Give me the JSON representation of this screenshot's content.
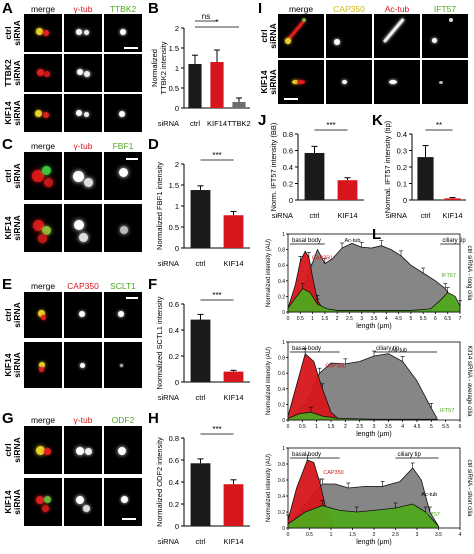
{
  "colors": {
    "red": "#d6161c",
    "green": "#4fa81e",
    "yellow": "#d4b800",
    "gray": "#6e6e6e",
    "black": "#1a1a1a"
  },
  "panels": {
    "A": {
      "label": "A",
      "headers": [
        "merge",
        "γ-tub",
        "TTBK2"
      ],
      "rows": [
        [
          "ctrl",
          "siRNA"
        ],
        [
          "TTBK2",
          "siRNA"
        ],
        [
          "KIF14",
          "siRNA"
        ]
      ]
    },
    "C": {
      "label": "C",
      "headers": [
        "merge",
        "γ-tub",
        "FBF1"
      ],
      "rows": [
        [
          "ctrl",
          "siRNA"
        ],
        [
          "KIF14",
          "siRNA"
        ]
      ]
    },
    "E": {
      "label": "E",
      "headers": [
        "merge",
        "CAP350",
        "SCLT1"
      ],
      "rows": [
        [
          "ctrl",
          "siRNA"
        ],
        [
          "KIF14",
          "siRNA"
        ]
      ]
    },
    "G": {
      "label": "G",
      "headers": [
        "merge",
        "γ-tub",
        "ODF2"
      ],
      "rows": [
        [
          "ctrl",
          "siRNA"
        ],
        [
          "KIF14",
          "siRNA"
        ]
      ]
    },
    "I": {
      "label": "I",
      "headers": [
        "merge",
        "CAP350",
        "Ac-tub",
        "IFT57"
      ],
      "rows": [
        [
          "ctrl",
          "siRNA"
        ],
        [
          "KIF14",
          "siRNA"
        ]
      ]
    }
  },
  "chart_data": [
    {
      "panel": "B",
      "type": "bar",
      "ylabel": "TTBK2 intensity",
      "ylabel2": "Normalized",
      "xlabel": "siRNA",
      "categories": [
        "ctrl",
        "KIF14",
        "TTBK2"
      ],
      "values": [
        1.1,
        1.15,
        0.15
      ],
      "errors": [
        0.22,
        0.3,
        0.1
      ],
      "colors": [
        "#1a1a1a",
        "#d6161c",
        "#6e6e6e"
      ],
      "ylim": [
        0,
        2
      ],
      "yticks": [
        "0",
        "0.5",
        "1",
        "1.5",
        "2"
      ],
      "sig": [
        {
          "from": 0,
          "to": 1,
          "label": "ns"
        },
        {
          "from": 0,
          "to": 2,
          "label": "*"
        }
      ]
    },
    {
      "panel": "D",
      "type": "bar",
      "ylabel": "Normalized FBF1 intensity",
      "xlabel": "siRNA",
      "categories": [
        "ctrl",
        "KIF14"
      ],
      "values": [
        1.38,
        0.78
      ],
      "errors": [
        0.1,
        0.09
      ],
      "colors": [
        "#1a1a1a",
        "#d6161c"
      ],
      "ylim": [
        0,
        2
      ],
      "yticks": [
        "0",
        "0.5",
        "1",
        "1.5",
        "2"
      ],
      "sig": [
        {
          "from": 0,
          "to": 1,
          "label": "***"
        }
      ]
    },
    {
      "panel": "F",
      "type": "bar",
      "ylabel": "Normalized SCTL1 intensity",
      "xlabel": "siRNA",
      "categories": [
        "ctrl",
        "KIF14"
      ],
      "values": [
        0.48,
        0.08
      ],
      "errors": [
        0.04,
        0.01
      ],
      "colors": [
        "#1a1a1a",
        "#d6161c"
      ],
      "ylim": [
        0,
        0.6
      ],
      "yticks": [
        "0",
        "0.2",
        "0.4",
        "0.6"
      ],
      "sig": [
        {
          "from": 0,
          "to": 1,
          "label": "***"
        }
      ]
    },
    {
      "panel": "H",
      "type": "bar",
      "ylabel": "Normalized ODF2 intensity",
      "xlabel": "siRNA",
      "categories": [
        "ctrl",
        "KIF14"
      ],
      "values": [
        0.57,
        0.38
      ],
      "errors": [
        0.04,
        0.04
      ],
      "colors": [
        "#1a1a1a",
        "#d6161c"
      ],
      "ylim": [
        0,
        0.8
      ],
      "yticks": [
        "0",
        "0.2",
        "0.4",
        "0.6",
        "0.8"
      ],
      "sig": [
        {
          "from": 0,
          "to": 1,
          "label": "***"
        }
      ]
    },
    {
      "panel": "J",
      "type": "bar",
      "ylabel": "Norm. IFT57 intensity (BB)",
      "xlabel": "siRNA",
      "categories": [
        "ctrl",
        "KIF14"
      ],
      "values": [
        0.57,
        0.24
      ],
      "errors": [
        0.08,
        0.03
      ],
      "colors": [
        "#1a1a1a",
        "#d6161c"
      ],
      "ylim": [
        0,
        0.8
      ],
      "yticks": [
        "0",
        "0.2",
        "0.4",
        "0.6",
        "0.8"
      ],
      "sig": [
        {
          "from": 0,
          "to": 1,
          "label": "***"
        }
      ]
    },
    {
      "panel": "K",
      "type": "bar",
      "ylabel": "Normal. IFT57 intensity (tip)",
      "xlabel": "siRNA",
      "categories": [
        "ctrl",
        "KIF14"
      ],
      "values": [
        0.26,
        0.01
      ],
      "errors": [
        0.07,
        0.005
      ],
      "colors": [
        "#1a1a1a",
        "#d6161c"
      ],
      "ylim": [
        0,
        0.4
      ],
      "yticks": [
        "0",
        "0.1",
        "0.2",
        "0.3",
        "0.4"
      ],
      "sig": [
        {
          "from": 0,
          "to": 1,
          "label": "**"
        }
      ]
    },
    {
      "panel": "L",
      "type": "area",
      "ylabel": "Normalized intensity (AU)",
      "xlabel": "length (μm)",
      "yticks": [
        "0",
        "0.2",
        "0.4",
        "0.6",
        "0.8",
        "1"
      ],
      "ylim": [
        0,
        1
      ],
      "subplots": [
        {
          "xlim": [
            0,
            7
          ],
          "xticks": [
            "0",
            "0.5",
            "1",
            "1.5",
            "2",
            "2.5",
            "3",
            "3.5",
            "4",
            "4.5",
            "5",
            "5.5",
            "6",
            "6.5",
            "7"
          ],
          "side_label": "ctrl siRNA - long cilia",
          "bracket_left": "basal body",
          "bracket_right": "ciliary tip",
          "labels": {
            "cap": "CAP350",
            "ac": "Ac-tub",
            "ift": "IFT57"
          },
          "series": [
            {
              "name": "CAP350",
              "x": [
                0,
                0.3,
                0.5,
                0.7,
                0.85,
                1.0,
                1.2,
                1.5
              ],
              "y": [
                0.05,
                0.35,
                0.65,
                0.78,
                0.7,
                0.45,
                0.15,
                0.0
              ]
            },
            {
              "name": "Ac-tub",
              "x": [
                0,
                0.5,
                0.9,
                1.2,
                1.5,
                1.8,
                2.2,
                2.6,
                3.0,
                3.4,
                3.8,
                4.2,
                4.6,
                5.0,
                5.5,
                6.0,
                6.4,
                6.7,
                7.0
              ],
              "y": [
                0.0,
                0.15,
                0.55,
                0.8,
                0.62,
                0.68,
                0.82,
                0.88,
                0.83,
                0.82,
                0.85,
                0.8,
                0.72,
                0.6,
                0.5,
                0.4,
                0.3,
                0.15,
                0.05
              ]
            },
            {
              "name": "IFT57",
              "x": [
                0,
                0.3,
                0.6,
                0.9,
                1.2,
                1.6,
                2.0,
                3.0,
                4.0,
                5.0,
                5.8,
                6.2,
                6.5,
                6.8,
                7.0
              ],
              "y": [
                0.05,
                0.18,
                0.3,
                0.25,
                0.1,
                0.04,
                0.02,
                0.02,
                0.02,
                0.02,
                0.04,
                0.15,
                0.25,
                0.2,
                0.08
              ]
            }
          ]
        },
        {
          "xlim": [
            0,
            6
          ],
          "xticks": [
            "0",
            "0.5",
            "1",
            "1.5",
            "2",
            "2.5",
            "3",
            "3.5",
            "4",
            "4.5",
            "5",
            "5.5",
            "6"
          ],
          "side_label": "Kif14 siRNA - average cilia",
          "bracket_left": "basal body",
          "bracket_right": "ciliary tip",
          "labels": {
            "cap": "CAP350",
            "ac": "Ac-tub",
            "ift": "IFT57"
          },
          "series": [
            {
              "name": "CAP350",
              "x": [
                0,
                0.3,
                0.6,
                0.9,
                1.2,
                1.5,
                1.8
              ],
              "y": [
                0.05,
                0.45,
                0.85,
                0.75,
                0.4,
                0.1,
                0.0
              ]
            },
            {
              "name": "Ac-tub",
              "x": [
                0,
                0.6,
                1.1,
                1.5,
                2.0,
                2.5,
                3.0,
                3.5,
                4.0,
                4.5,
                5.0,
                5.2
              ],
              "y": [
                0.0,
                0.2,
                0.6,
                0.73,
                0.72,
                0.75,
                0.82,
                0.85,
                0.75,
                0.5,
                0.15,
                0.02
              ]
            },
            {
              "name": "IFT57",
              "x": [
                0,
                0.4,
                0.8,
                1.2,
                1.8,
                3.0,
                4.0,
                5.0,
                5.2
              ],
              "y": [
                0.02,
                0.08,
                0.1,
                0.05,
                0.02,
                0.01,
                0.01,
                0.01,
                0.01
              ]
            }
          ]
        },
        {
          "xlim": [
            0,
            4
          ],
          "xticks": [
            "0",
            "0.5",
            "1",
            "1.5",
            "2",
            "2.5",
            "3",
            "3.5",
            "4"
          ],
          "side_label": "ctrl siRNA - short cilia",
          "bracket_left": "basal body",
          "bracket_right": "ciliary tip",
          "labels": {
            "cap": "CAP350",
            "ac": "Ac-tub",
            "ift": "IFT57"
          },
          "series": [
            {
              "name": "CAP350",
              "x": [
                0,
                0.2,
                0.45,
                0.6,
                0.75,
                0.9,
                1.1
              ],
              "y": [
                0.1,
                0.5,
                0.85,
                0.82,
                0.55,
                0.2,
                0.0
              ]
            },
            {
              "name": "Ac-tub",
              "x": [
                0,
                0.4,
                0.8,
                1.1,
                1.4,
                1.8,
                2.2,
                2.6,
                2.9,
                3.1,
                3.3,
                3.5
              ],
              "y": [
                0.0,
                0.3,
                0.55,
                0.55,
                0.5,
                0.52,
                0.52,
                0.58,
                0.75,
                0.6,
                0.2,
                0.02
              ]
            },
            {
              "name": "IFT57",
              "x": [
                0,
                0.4,
                0.8,
                1.2,
                1.6,
                2.0,
                2.5,
                2.9,
                3.2,
                3.5
              ],
              "y": [
                0.05,
                0.2,
                0.28,
                0.22,
                0.2,
                0.22,
                0.25,
                0.3,
                0.2,
                0.02
              ]
            }
          ]
        }
      ]
    }
  ]
}
